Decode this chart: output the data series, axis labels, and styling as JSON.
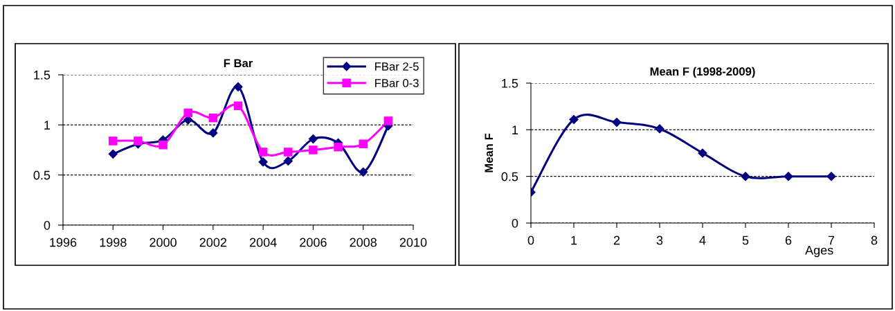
{
  "chart_data": [
    {
      "type": "line",
      "title": "F Bar",
      "x": [
        1998,
        1999,
        2000,
        2001,
        2002,
        2003,
        2004,
        2005,
        2006,
        2007,
        2008,
        2009
      ],
      "series": [
        {
          "name": "FBar 2-5",
          "color": "#000080",
          "marker": "diamond",
          "values": [
            0.71,
            0.81,
            0.85,
            1.05,
            0.92,
            1.38,
            0.63,
            0.64,
            0.86,
            0.82,
            0.53,
            0.99
          ]
        },
        {
          "name": "FBar 0-3",
          "color": "#ff00ff",
          "marker": "square",
          "values": [
            0.84,
            0.84,
            0.8,
            1.12,
            1.07,
            1.19,
            0.73,
            0.73,
            0.75,
            0.78,
            0.81,
            1.04
          ]
        }
      ],
      "xlim": [
        1996,
        2010
      ],
      "xticks": [
        1996,
        1998,
        2000,
        2002,
        2004,
        2006,
        2008,
        2010
      ],
      "ylim": [
        0,
        1.5
      ],
      "yticks": [
        0,
        0.5,
        1,
        1.5
      ],
      "grid": "y",
      "legend": "top right"
    },
    {
      "type": "line",
      "title": "Mean F (1998-2009)",
      "xlabel": "Ages",
      "ylabel": "Mean F",
      "x": [
        0,
        1,
        2,
        3,
        4,
        5,
        6,
        7
      ],
      "series": [
        {
          "color": "#000080",
          "marker": "diamond",
          "values": [
            0.33,
            1.11,
            1.08,
            1.01,
            0.75,
            0.5,
            0.5,
            0.5
          ]
        }
      ],
      "xlim": [
        0,
        8
      ],
      "xticks": [
        0,
        1,
        2,
        3,
        4,
        5,
        6,
        7,
        8
      ],
      "ylim": [
        0,
        1.5
      ],
      "yticks": [
        0,
        0.5,
        1,
        1.5
      ],
      "grid": "y",
      "legend": false
    }
  ]
}
